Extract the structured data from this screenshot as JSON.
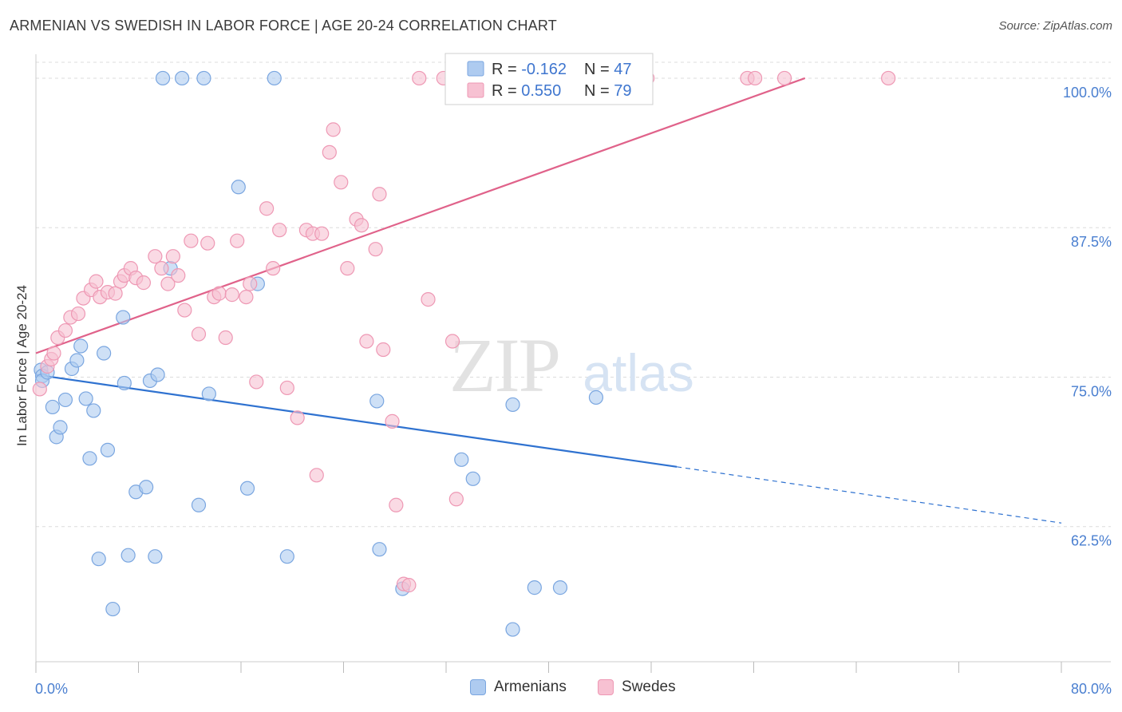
{
  "title": "ARMENIAN VS SWEDISH IN LABOR FORCE | AGE 20-24 CORRELATION CHART",
  "source": "Source: ZipAtlas.com",
  "watermark": {
    "zip": "ZIP",
    "atlas": "atlas"
  },
  "colors": {
    "blue_fill": "#aecbf0",
    "blue_stroke": "#7aa6e0",
    "blue_line": "#2f72d0",
    "pink_fill": "#f7c1d2",
    "pink_stroke": "#ee98b4",
    "pink_line": "#e0628a",
    "tick_label": "#4a7fd0",
    "grid": "#dcdcdc"
  },
  "legend_top": {
    "rows": [
      {
        "r_label": "R = ",
        "r_value": "-0.162",
        "n_label": "N = ",
        "n_value": "47"
      },
      {
        "r_label": "R = ",
        "r_value": "0.550",
        "n_label": "N = ",
        "n_value": "79"
      }
    ]
  },
  "legend_bottom": {
    "armenians": "Armenians",
    "swedes": "Swedes"
  },
  "chart_data": {
    "type": "scatter",
    "title": "ARMENIAN VS SWEDISH IN LABOR FORCE | AGE 20-24 CORRELATION CHART",
    "xlabel": "",
    "ylabel": "In Labor Force | Age 20-24",
    "xlim": [
      0,
      80
    ],
    "ylim": [
      51.2,
      102
    ],
    "x_tick_labels": [
      "0.0%",
      "80.0%"
    ],
    "y_ticks": [
      62.5,
      75.0,
      87.5,
      100.0
    ],
    "y_tick_labels": [
      "62.5%",
      "75.0%",
      "87.5%",
      "100.0%"
    ],
    "grid": "horizontal dashed",
    "legend_position": "top-center",
    "series": [
      {
        "name": "Armenians",
        "r": -0.162,
        "n": 47,
        "trend": {
          "x": [
            0,
            50
          ],
          "y": [
            75.2,
            67.5
          ],
          "dashed_to": [
            80,
            62.8
          ]
        },
        "points": [
          [
            0.4,
            75.6
          ],
          [
            0.5,
            75.1
          ],
          [
            0.5,
            74.7
          ],
          [
            0.9,
            75.4
          ],
          [
            1.3,
            72.5
          ],
          [
            1.6,
            70.0
          ],
          [
            1.9,
            70.8
          ],
          [
            2.3,
            73.1
          ],
          [
            2.8,
            75.7
          ],
          [
            3.2,
            76.4
          ],
          [
            3.5,
            77.6
          ],
          [
            3.9,
            73.2
          ],
          [
            4.2,
            68.2
          ],
          [
            4.5,
            72.2
          ],
          [
            4.9,
            59.8
          ],
          [
            5.3,
            77.0
          ],
          [
            5.6,
            68.9
          ],
          [
            6.0,
            55.6
          ],
          [
            6.8,
            80.0
          ],
          [
            6.9,
            74.5
          ],
          [
            7.2,
            60.1
          ],
          [
            7.8,
            65.4
          ],
          [
            8.6,
            65.8
          ],
          [
            8.9,
            74.7
          ],
          [
            9.3,
            60.0
          ],
          [
            9.5,
            75.2
          ],
          [
            9.9,
            100.0
          ],
          [
            10.5,
            84.1
          ],
          [
            11.4,
            100.0
          ],
          [
            12.7,
            64.3
          ],
          [
            13.1,
            100.0
          ],
          [
            13.5,
            73.6
          ],
          [
            15.8,
            90.9
          ],
          [
            16.5,
            65.7
          ],
          [
            17.3,
            82.8
          ],
          [
            18.6,
            100.0
          ],
          [
            19.6,
            60.0
          ],
          [
            26.6,
            73.0
          ],
          [
            26.8,
            60.6
          ],
          [
            28.6,
            57.3
          ],
          [
            33.2,
            68.1
          ],
          [
            34.1,
            66.5
          ],
          [
            37.2,
            72.7
          ],
          [
            37.2,
            53.9
          ],
          [
            38.9,
            57.4
          ],
          [
            40.9,
            57.4
          ],
          [
            43.7,
            73.3
          ]
        ]
      },
      {
        "name": "Swedes",
        "r": 0.55,
        "n": 79,
        "trend": {
          "x": [
            0,
            60
          ],
          "y": [
            77.0,
            100.0
          ]
        },
        "points": [
          [
            0.3,
            74.0
          ],
          [
            0.9,
            75.9
          ],
          [
            1.2,
            76.5
          ],
          [
            1.4,
            77.0
          ],
          [
            1.7,
            78.3
          ],
          [
            2.3,
            78.9
          ],
          [
            2.7,
            80.0
          ],
          [
            3.3,
            80.3
          ],
          [
            3.7,
            81.6
          ],
          [
            4.3,
            82.3
          ],
          [
            4.7,
            83.0
          ],
          [
            5.0,
            81.7
          ],
          [
            5.6,
            82.1
          ],
          [
            6.2,
            82.0
          ],
          [
            6.6,
            83.0
          ],
          [
            6.9,
            83.5
          ],
          [
            7.4,
            84.1
          ],
          [
            7.8,
            83.3
          ],
          [
            8.4,
            82.9
          ],
          [
            9.3,
            85.1
          ],
          [
            9.8,
            84.1
          ],
          [
            10.3,
            82.8
          ],
          [
            10.7,
            85.1
          ],
          [
            11.1,
            83.5
          ],
          [
            11.6,
            80.6
          ],
          [
            12.1,
            86.4
          ],
          [
            12.7,
            78.6
          ],
          [
            13.4,
            86.2
          ],
          [
            13.9,
            81.7
          ],
          [
            14.3,
            82.0
          ],
          [
            14.8,
            78.3
          ],
          [
            15.3,
            81.9
          ],
          [
            15.7,
            86.4
          ],
          [
            16.4,
            81.7
          ],
          [
            16.7,
            82.8
          ],
          [
            17.2,
            74.6
          ],
          [
            18.0,
            89.1
          ],
          [
            18.5,
            84.1
          ],
          [
            19.0,
            87.3
          ],
          [
            19.6,
            74.1
          ],
          [
            20.4,
            71.6
          ],
          [
            21.1,
            87.3
          ],
          [
            21.6,
            87.0
          ],
          [
            21.9,
            66.8
          ],
          [
            22.3,
            87.0
          ],
          [
            22.9,
            93.8
          ],
          [
            23.2,
            95.7
          ],
          [
            23.8,
            91.3
          ],
          [
            24.3,
            84.1
          ],
          [
            25.0,
            88.2
          ],
          [
            25.4,
            87.7
          ],
          [
            25.8,
            78.0
          ],
          [
            26.5,
            85.7
          ],
          [
            26.8,
            90.3
          ],
          [
            27.1,
            77.3
          ],
          [
            27.8,
            71.3
          ],
          [
            28.1,
            64.3
          ],
          [
            28.7,
            57.7
          ],
          [
            29.1,
            57.6
          ],
          [
            29.9,
            100.0
          ],
          [
            30.6,
            81.5
          ],
          [
            31.8,
            100.0
          ],
          [
            32.5,
            78.0
          ],
          [
            32.8,
            64.8
          ],
          [
            33.4,
            100.0
          ],
          [
            34.1,
            100.0
          ],
          [
            35.4,
            100.0
          ],
          [
            36.1,
            100.0
          ],
          [
            37.2,
            100.0
          ],
          [
            39.6,
            100.0
          ],
          [
            40.5,
            100.0
          ],
          [
            41.8,
            100.0
          ],
          [
            42.7,
            100.0
          ],
          [
            45.4,
            100.0
          ],
          [
            47.7,
            100.0
          ],
          [
            55.5,
            100.0
          ],
          [
            56.1,
            100.0
          ],
          [
            58.4,
            100.0
          ],
          [
            66.5,
            100.0
          ]
        ]
      }
    ]
  }
}
